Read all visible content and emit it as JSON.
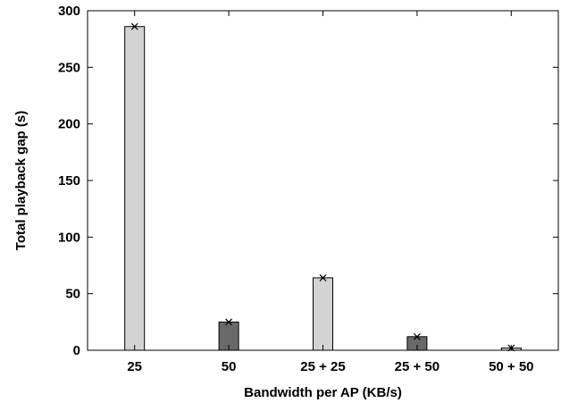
{
  "chart_data": {
    "type": "bar",
    "title": "",
    "xlabel": "Bandwidth per AP (KB/s)",
    "ylabel": "Total playback gap (s)",
    "ylim": [
      0,
      300
    ],
    "yticks": [
      0,
      50,
      100,
      150,
      200,
      250,
      300
    ],
    "categories": [
      "25",
      "50",
      "25 + 25",
      "25 + 50",
      "50 + 50"
    ],
    "values": [
      286,
      25,
      64,
      12,
      2
    ],
    "bar_colors": [
      "#d3d3d3",
      "#696969",
      "#d3d3d3",
      "#696969",
      "#d3d3d3"
    ],
    "marker": "x",
    "grid": false,
    "legend": "none"
  }
}
